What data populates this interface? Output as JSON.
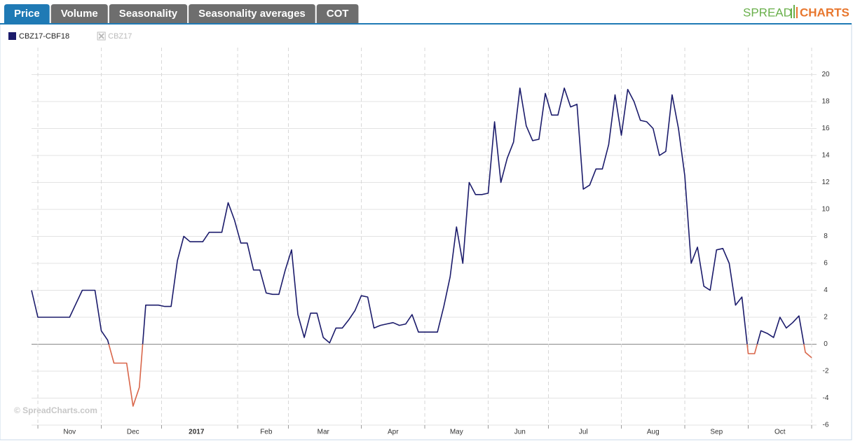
{
  "ui": {
    "tabs": [
      "Price",
      "Volume",
      "Seasonality",
      "Seasonality averages",
      "COT"
    ],
    "logo": [
      "SPREAD",
      "CHARTS"
    ]
  },
  "chart_data": {
    "type": "line",
    "watermark": "© SpreadCharts.com",
    "categories": [
      null,
      null,
      null,
      null,
      null,
      null,
      "Nov",
      null,
      null,
      null,
      null,
      null,
      null,
      null,
      null,
      null,
      "Dec",
      null,
      null,
      null,
      null,
      null,
      null,
      null,
      null,
      null,
      "2017",
      null,
      null,
      null,
      null,
      null,
      null,
      null,
      null,
      null,
      null,
      "Feb",
      null,
      null,
      null,
      null,
      null,
      null,
      null,
      null,
      "Mar",
      null,
      null,
      null,
      null,
      null,
      null,
      null,
      null,
      null,
      null,
      "Apr",
      null,
      null,
      null,
      null,
      null,
      null,
      null,
      null,
      null,
      "May",
      null,
      null,
      null,
      null,
      null,
      null,
      null,
      null,
      null,
      "Jun",
      null,
      null,
      null,
      null,
      null,
      null,
      null,
      null,
      null,
      "Jul",
      null,
      null,
      null,
      null,
      null,
      null,
      null,
      null,
      null,
      null,
      "Aug",
      null,
      null,
      null,
      null,
      null,
      null,
      null,
      null,
      null,
      "Sep",
      null,
      null,
      null,
      null,
      null,
      null,
      null,
      null,
      null,
      "Oct",
      null,
      null,
      null,
      null,
      null
    ],
    "series": [
      {
        "name": "CBZ17-CBF18",
        "color": "#1b1b6b",
        "negative_color": "#d9664a",
        "values": [
          4,
          2,
          2,
          2,
          2,
          2,
          2,
          3,
          4,
          4,
          4,
          1,
          0.3,
          -1.4,
          -1.4,
          -1.4,
          -4.6,
          -3.2,
          2.9,
          2.9,
          2.9,
          2.8,
          2.8,
          6.2,
          8,
          7.6,
          7.6,
          7.6,
          8.3,
          8.3,
          8.3,
          10.5,
          9.2,
          7.5,
          7.5,
          5.5,
          5.5,
          3.8,
          3.7,
          3.7,
          5.5,
          7,
          2.2,
          0.5,
          2.3,
          2.3,
          0.5,
          0.1,
          1.2,
          1.2,
          1.8,
          2.5,
          3.6,
          3.5,
          1.2,
          1.4,
          1.5,
          1.6,
          1.4,
          1.5,
          2.2,
          0.9,
          0.9,
          0.9,
          0.9,
          2.8,
          5,
          8.7,
          6,
          12,
          11.1,
          11.1,
          11.2,
          16.5,
          12,
          13.8,
          15,
          19,
          16.2,
          15.1,
          15.2,
          18.6,
          17,
          17,
          19,
          17.6,
          17.8,
          11.5,
          11.8,
          13,
          13,
          14.8,
          18.5,
          15.5,
          18.9,
          18,
          16.6,
          16.5,
          16,
          14,
          14.3,
          18.5,
          16,
          12.5,
          6,
          7.2,
          4.3,
          4,
          7,
          7.1,
          6,
          2.9,
          3.5,
          -0.7,
          -0.7,
          1,
          0.8,
          0.5,
          2,
          1.2,
          1.6,
          2.1,
          -0.6,
          -1
        ]
      },
      {
        "name": "CBZ17",
        "color": "#bbbbbb",
        "visible": false
      }
    ],
    "ylim": [
      -6,
      22
    ],
    "yticks": [
      -6,
      -4,
      -2,
      0,
      2,
      4,
      6,
      8,
      10,
      12,
      14,
      16,
      18,
      20
    ],
    "grid": true
  }
}
